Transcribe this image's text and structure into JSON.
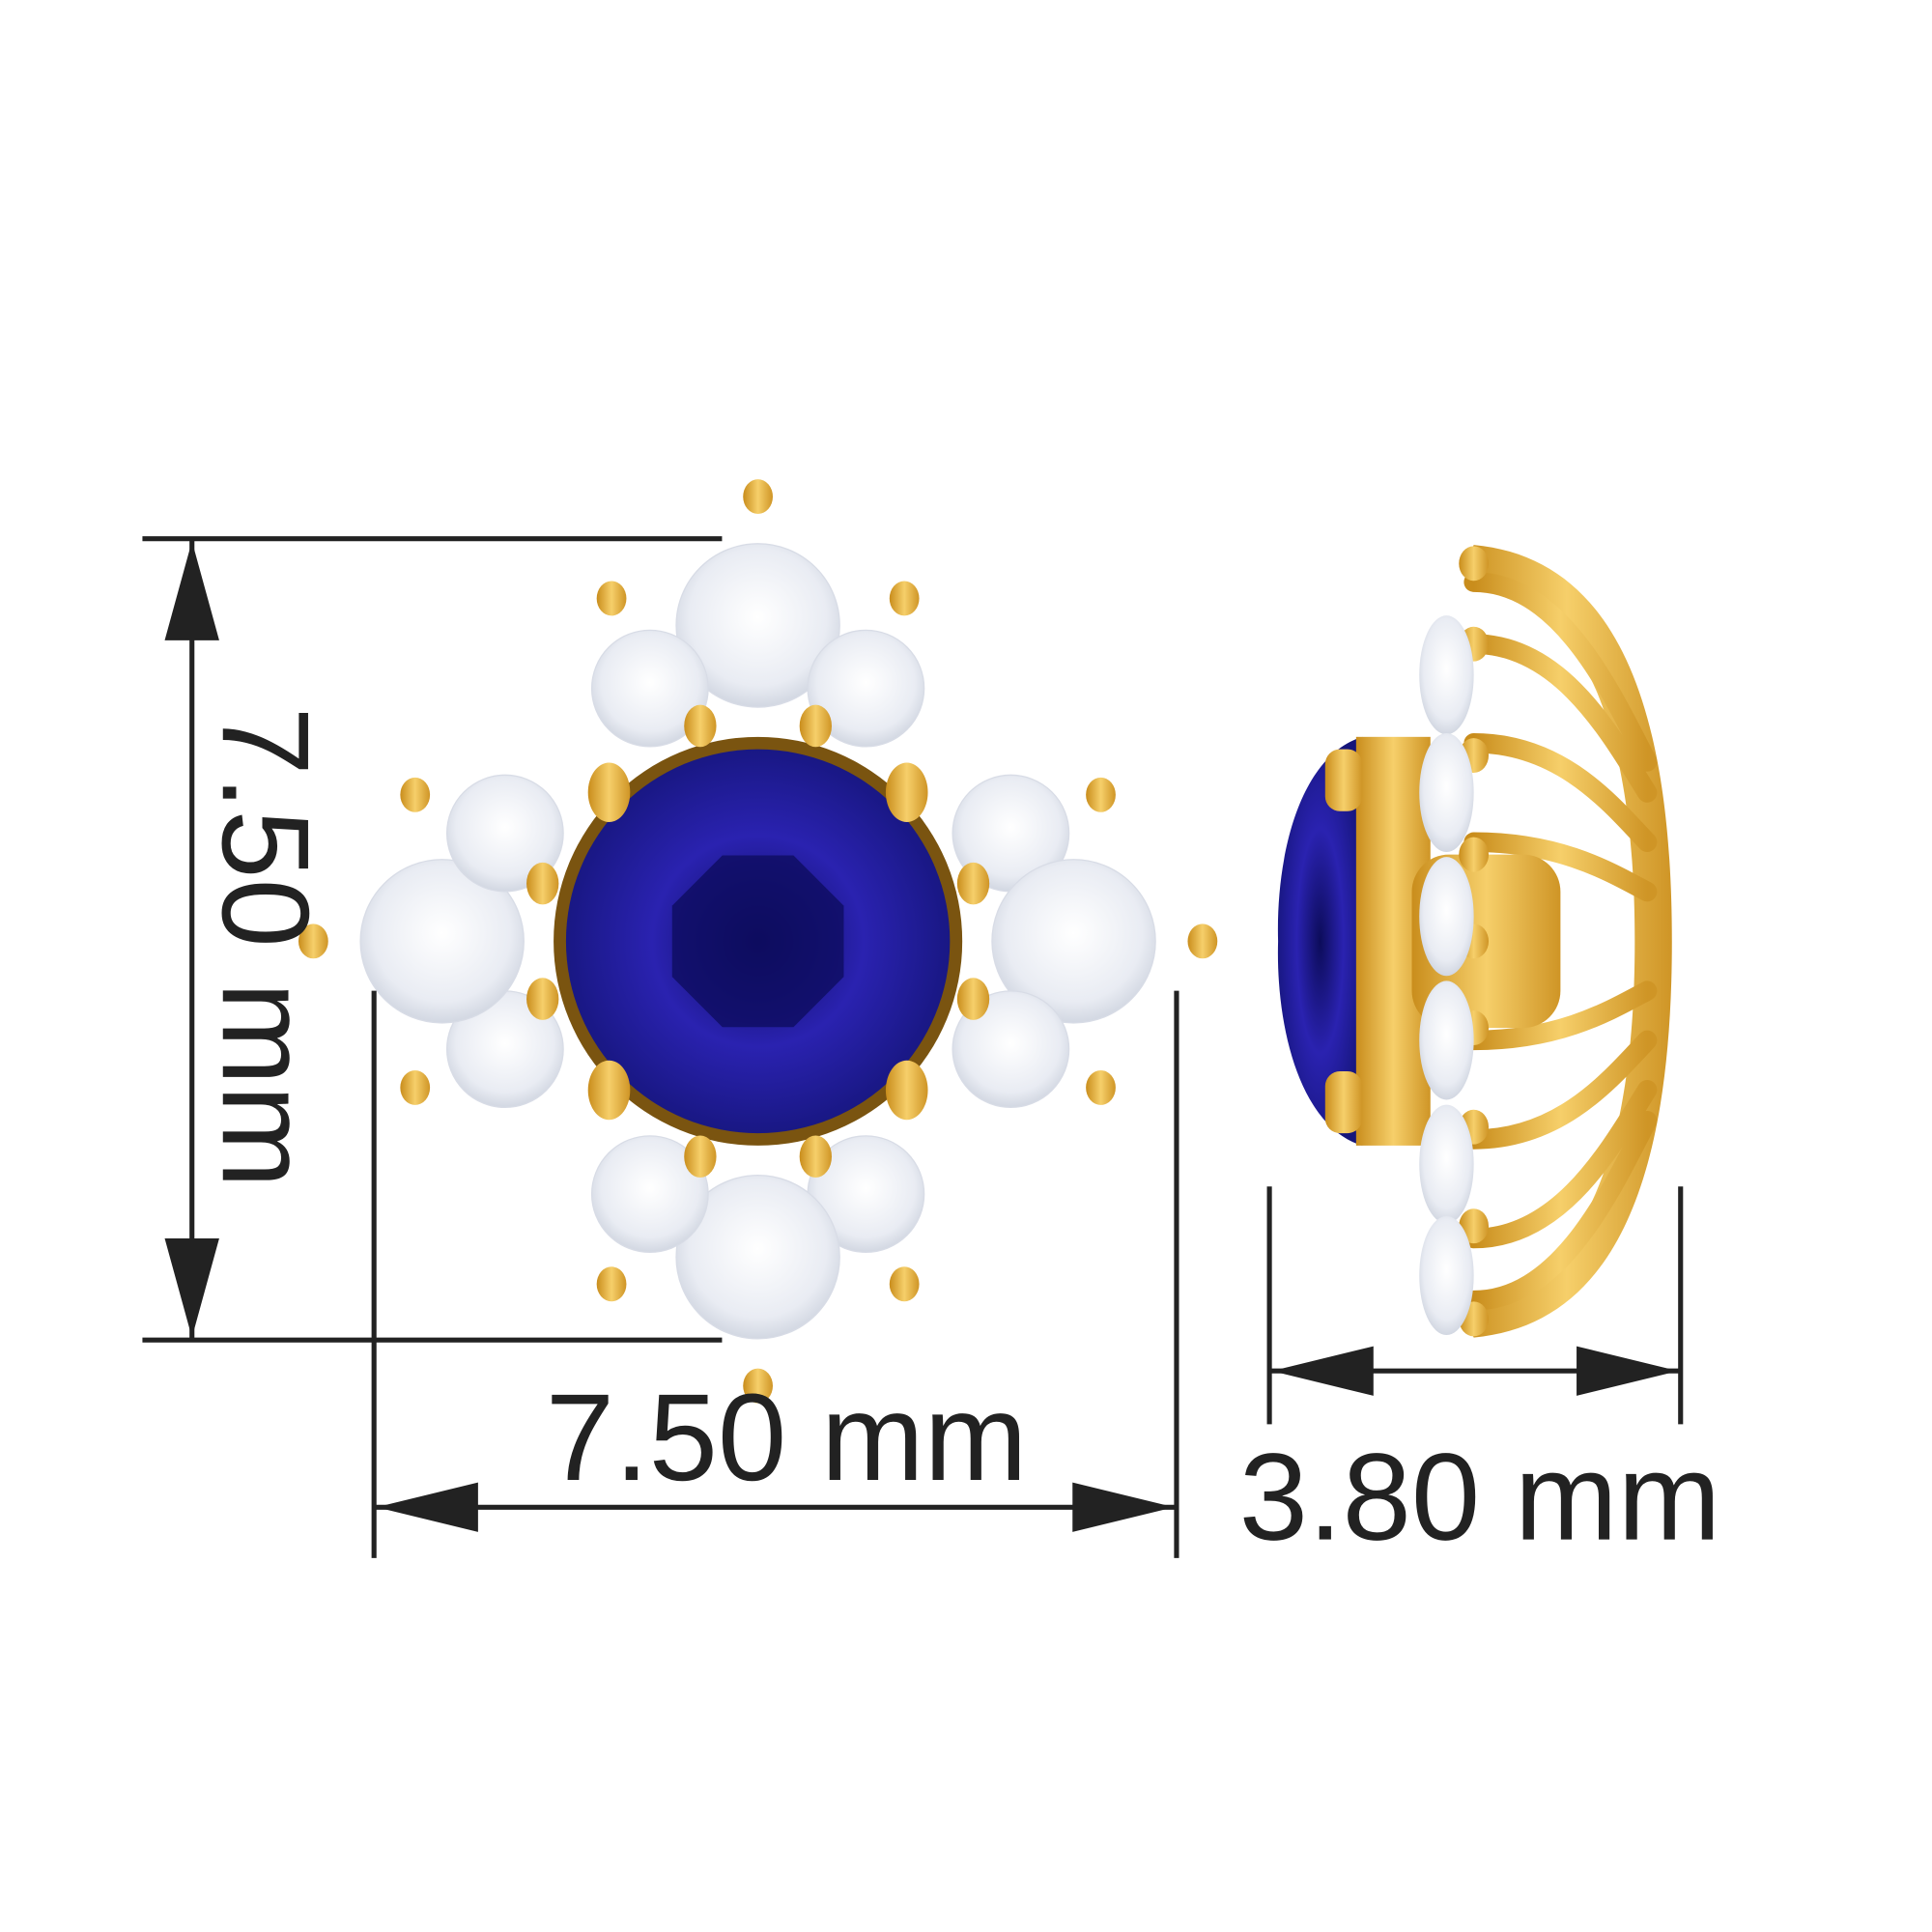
{
  "dimensions": {
    "height_label": "7.50 mm",
    "width_label": "7.50 mm",
    "depth_label": "3.80 mm"
  },
  "colors": {
    "gold": "#e8b43c",
    "sapphire": "#1a1a8c",
    "diamond": "#f2f4f8",
    "dimension_line": "#222222"
  }
}
